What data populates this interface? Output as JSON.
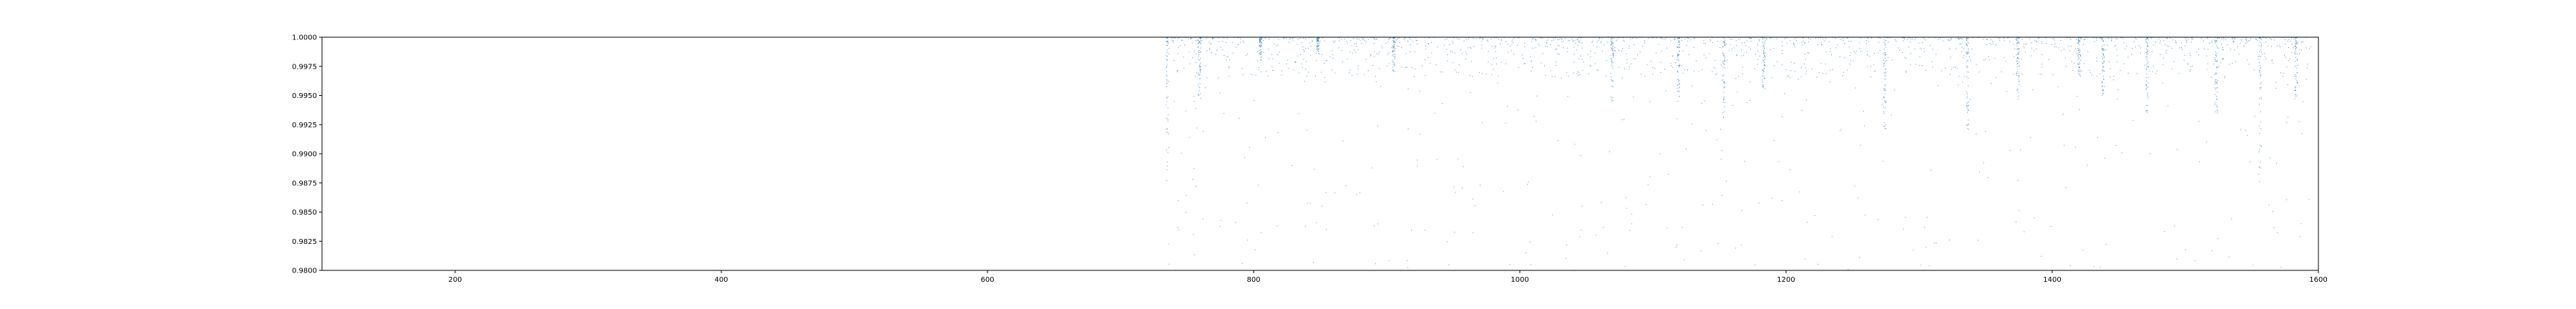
{
  "chart_data": {
    "type": "scatter",
    "title": "",
    "xlabel": "",
    "ylabel": "",
    "xlim": [
      100,
      1600
    ],
    "ylim": [
      0.98,
      1.0
    ],
    "grid": false,
    "legend": "none",
    "x_ticks": [
      200,
      400,
      600,
      800,
      1000,
      1200,
      1400,
      1600
    ],
    "x_tick_labels": [
      "200",
      "400",
      "600",
      "800",
      "1000",
      "1200",
      "1400",
      "1600"
    ],
    "y_ticks": [
      0.98,
      0.9825,
      0.985,
      0.9875,
      0.99,
      0.9925,
      0.995,
      0.9975,
      1.0
    ],
    "y_tick_labels": [
      "0.9800",
      "0.9825",
      "0.9850",
      "0.9875",
      "0.9900",
      "0.9925",
      "0.9950",
      "0.9975",
      "1.0000"
    ],
    "colors": {
      "points": "#1f77b4",
      "axes": "#000000"
    },
    "series": [
      {
        "x_range": [
          735,
          1595
        ],
        "density": "dense cluster of points along y = 1.0 with thin vertical streaks at recurring x positions; sparse scattered points down to 0.98",
        "streaks": [
          {
            "x": 735,
            "y_min": 0.9875
          },
          {
            "x": 759,
            "y_min": 0.9945
          },
          {
            "x": 805,
            "y_min": 0.998
          },
          {
            "x": 848,
            "y_min": 0.9985
          },
          {
            "x": 905,
            "y_min": 0.997
          },
          {
            "x": 1069,
            "y_min": 0.9945
          },
          {
            "x": 1119,
            "y_min": 0.9945
          },
          {
            "x": 1153,
            "y_min": 0.9925
          },
          {
            "x": 1183,
            "y_min": 0.9955
          },
          {
            "x": 1274,
            "y_min": 0.992
          },
          {
            "x": 1336,
            "y_min": 0.992
          },
          {
            "x": 1374,
            "y_min": 0.9945
          },
          {
            "x": 1420,
            "y_min": 0.9965
          },
          {
            "x": 1438,
            "y_min": 0.995
          },
          {
            "x": 1471,
            "y_min": 0.9935
          },
          {
            "x": 1523,
            "y_min": 0.9935
          },
          {
            "x": 1556,
            "y_min": 0.9875
          },
          {
            "x": 1583,
            "y_min": 0.9945
          }
        ]
      }
    ]
  }
}
